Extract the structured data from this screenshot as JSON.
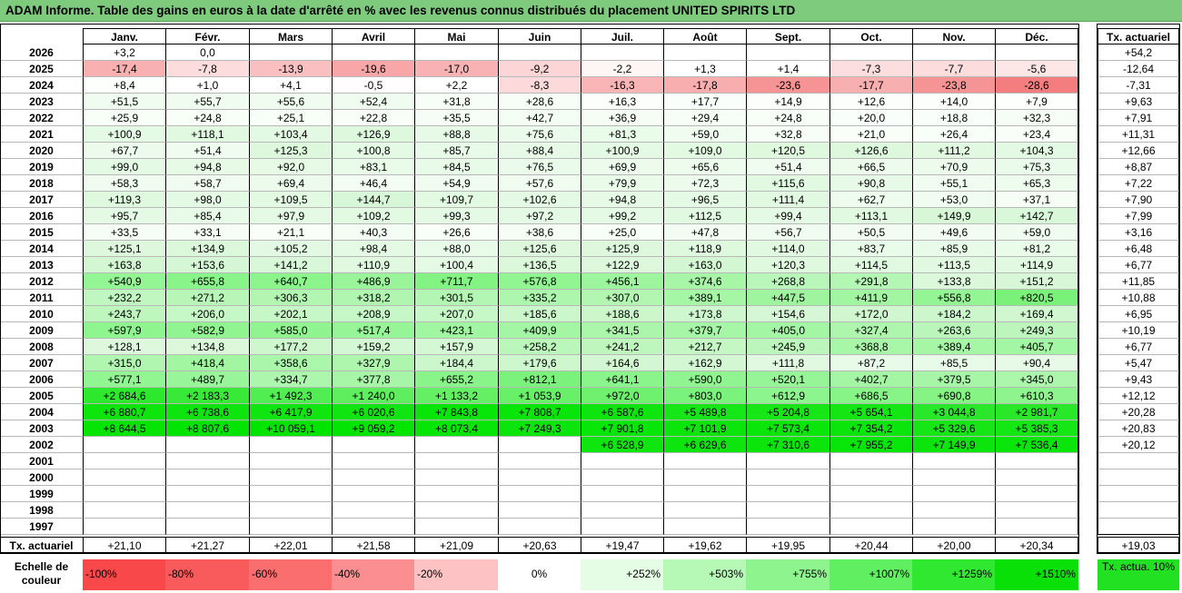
{
  "title": "ADAM Informe. Table des gains en euros à la date d'arrêté en % avec les revenus connus distribués du placement UNITED SPIRITS LTD",
  "columns": [
    "Janv.",
    "Févr.",
    "Mars",
    "Avril",
    "Mai",
    "Juin",
    "Juil.",
    "Août",
    "Sept.",
    "Oct.",
    "Nov.",
    "Déc."
  ],
  "tx_header": "Tx. actuariel",
  "rows": [
    {
      "year": "2026",
      "values": [
        "+3,2",
        "0,0",
        "",
        "",
        "",
        "",
        "",
        "",
        "",
        "",
        "",
        ""
      ],
      "tx": "+54,2"
    },
    {
      "year": "2025",
      "values": [
        "-17,4",
        "-7,8",
        "-13,9",
        "-19,6",
        "-17,0",
        "-9,2",
        "-2,2",
        "+1,3",
        "+1,4",
        "-7,3",
        "-7,7",
        "-5,6"
      ],
      "tx": "-12,64"
    },
    {
      "year": "2024",
      "values": [
        "+8,4",
        "+1,0",
        "+4,1",
        "-0,5",
        "+2,2",
        "-8,3",
        "-16,3",
        "-17,8",
        "-23,6",
        "-17,7",
        "-23,8",
        "-28,6"
      ],
      "tx": "-7,31"
    },
    {
      "year": "2023",
      "values": [
        "+51,5",
        "+55,7",
        "+55,6",
        "+52,4",
        "+31,8",
        "+28,6",
        "+16,3",
        "+17,7",
        "+14,9",
        "+12,6",
        "+14,0",
        "+7,9"
      ],
      "tx": "+9,63"
    },
    {
      "year": "2022",
      "values": [
        "+25,9",
        "+24,8",
        "+25,1",
        "+22,8",
        "+35,5",
        "+42,7",
        "+36,9",
        "+29,4",
        "+24,8",
        "+20,0",
        "+18,8",
        "+32,3"
      ],
      "tx": "+7,91"
    },
    {
      "year": "2021",
      "values": [
        "+100,9",
        "+118,1",
        "+103,4",
        "+126,9",
        "+88,8",
        "+75,6",
        "+81,3",
        "+59,0",
        "+32,8",
        "+21,0",
        "+26,4",
        "+23,4"
      ],
      "tx": "+11,31"
    },
    {
      "year": "2020",
      "values": [
        "+67,7",
        "+51,4",
        "+125,3",
        "+100,8",
        "+85,7",
        "+88,4",
        "+100,9",
        "+109,0",
        "+120,5",
        "+126,6",
        "+111,2",
        "+104,3"
      ],
      "tx": "+12,66"
    },
    {
      "year": "2019",
      "values": [
        "+99,0",
        "+94,8",
        "+92,0",
        "+83,1",
        "+84,5",
        "+76,5",
        "+69,9",
        "+65,6",
        "+51,4",
        "+66,5",
        "+70,9",
        "+75,3"
      ],
      "tx": "+8,87"
    },
    {
      "year": "2018",
      "values": [
        "+58,3",
        "+58,7",
        "+69,4",
        "+46,4",
        "+54,9",
        "+57,6",
        "+79,9",
        "+72,3",
        "+115,6",
        "+90,8",
        "+55,1",
        "+65,3"
      ],
      "tx": "+7,22"
    },
    {
      "year": "2017",
      "values": [
        "+119,3",
        "+98,0",
        "+109,5",
        "+144,7",
        "+109,7",
        "+102,6",
        "+94,8",
        "+96,5",
        "+111,4",
        "+62,7",
        "+53,0",
        "+37,1"
      ],
      "tx": "+7,90"
    },
    {
      "year": "2016",
      "values": [
        "+95,7",
        "+85,4",
        "+97,9",
        "+109,2",
        "+99,3",
        "+97,2",
        "+99,2",
        "+112,5",
        "+99,4",
        "+113,1",
        "+149,9",
        "+142,7"
      ],
      "tx": "+7,99"
    },
    {
      "year": "2015",
      "values": [
        "+33,5",
        "+33,1",
        "+21,1",
        "+40,3",
        "+26,6",
        "+38,6",
        "+25,0",
        "+47,8",
        "+56,7",
        "+50,5",
        "+49,6",
        "+59,0"
      ],
      "tx": "+3,16"
    },
    {
      "year": "2014",
      "values": [
        "+125,1",
        "+134,9",
        "+105,2",
        "+98,4",
        "+88,0",
        "+125,6",
        "+125,9",
        "+118,9",
        "+114,0",
        "+83,7",
        "+85,9",
        "+81,2"
      ],
      "tx": "+6,48"
    },
    {
      "year": "2013",
      "values": [
        "+163,8",
        "+153,6",
        "+141,2",
        "+110,9",
        "+100,4",
        "+136,5",
        "+122,9",
        "+163,0",
        "+120,3",
        "+114,5",
        "+113,5",
        "+114,9"
      ],
      "tx": "+6,77"
    },
    {
      "year": "2012",
      "values": [
        "+540,9",
        "+655,8",
        "+640,7",
        "+486,9",
        "+711,7",
        "+576,8",
        "+456,1",
        "+374,6",
        "+268,8",
        "+291,8",
        "+133,8",
        "+151,2"
      ],
      "tx": "+11,85"
    },
    {
      "year": "2011",
      "values": [
        "+232,2",
        "+271,2",
        "+306,3",
        "+318,2",
        "+301,5",
        "+335,2",
        "+307,0",
        "+389,1",
        "+447,5",
        "+411,9",
        "+556,8",
        "+820,5"
      ],
      "tx": "+10,88"
    },
    {
      "year": "2010",
      "values": [
        "+243,7",
        "+206,0",
        "+202,1",
        "+208,9",
        "+207,0",
        "+185,6",
        "+188,6",
        "+173,8",
        "+154,6",
        "+172,0",
        "+184,2",
        "+169,4"
      ],
      "tx": "+6,95"
    },
    {
      "year": "2009",
      "values": [
        "+597,9",
        "+582,9",
        "+585,0",
        "+517,4",
        "+423,1",
        "+409,9",
        "+341,5",
        "+379,7",
        "+405,0",
        "+327,4",
        "+263,6",
        "+249,3"
      ],
      "tx": "+10,19"
    },
    {
      "year": "2008",
      "values": [
        "+128,1",
        "+134,8",
        "+177,2",
        "+159,2",
        "+157,9",
        "+258,2",
        "+241,2",
        "+212,7",
        "+245,9",
        "+368,8",
        "+389,4",
        "+405,7"
      ],
      "tx": "+6,77"
    },
    {
      "year": "2007",
      "values": [
        "+315,0",
        "+418,4",
        "+358,6",
        "+327,9",
        "+184,4",
        "+179,6",
        "+164,6",
        "+162,9",
        "+111,8",
        "+87,2",
        "+85,5",
        "+90,4"
      ],
      "tx": "+5,47"
    },
    {
      "year": "2006",
      "values": [
        "+577,1",
        "+489,7",
        "+334,7",
        "+377,8",
        "+655,2",
        "+812,1",
        "+641,1",
        "+590,0",
        "+520,1",
        "+402,7",
        "+379,5",
        "+345,0"
      ],
      "tx": "+9,43"
    },
    {
      "year": "2005",
      "values": [
        "+2 684,6",
        "+2 183,3",
        "+1 492,3",
        "+1 240,0",
        "+1 133,2",
        "+1 053,9",
        "+972,0",
        "+803,0",
        "+612,9",
        "+686,5",
        "+690,8",
        "+610,3"
      ],
      "tx": "+12,12"
    },
    {
      "year": "2004",
      "values": [
        "+6 880,7",
        "+6 738,6",
        "+6 417,9",
        "+6 020,6",
        "+7 843,8",
        "+7 808,7",
        "+6 587,6",
        "+5 489,8",
        "+5 204,8",
        "+5 654,1",
        "+3 044,8",
        "+2 981,7"
      ],
      "tx": "+20,28"
    },
    {
      "year": "2003",
      "values": [
        "+8 644,5",
        "+8 807,6",
        "+10 059,1",
        "+9 059,2",
        "+8 073,4",
        "+7 249,3",
        "+7 901,8",
        "+7 101,9",
        "+7 573,4",
        "+7 354,2",
        "+5 329,6",
        "+5 385,3"
      ],
      "tx": "+20,83"
    },
    {
      "year": "2002",
      "values": [
        "",
        "",
        "",
        "",
        "",
        "",
        "+6 528,9",
        "+6 629,6",
        "+7 310,6",
        "+7 955,2",
        "+7 149,9",
        "+7 536,4"
      ],
      "tx": "+20,12"
    },
    {
      "year": "2001",
      "values": [
        "",
        "",
        "",
        "",
        "",
        "",
        "",
        "",
        "",
        "",
        "",
        ""
      ],
      "tx": ""
    },
    {
      "year": "2000",
      "values": [
        "",
        "",
        "",
        "",
        "",
        "",
        "",
        "",
        "",
        "",
        "",
        ""
      ],
      "tx": ""
    },
    {
      "year": "1999",
      "values": [
        "",
        "",
        "",
        "",
        "",
        "",
        "",
        "",
        "",
        "",
        "",
        ""
      ],
      "tx": ""
    },
    {
      "year": "1998",
      "values": [
        "",
        "",
        "",
        "",
        "",
        "",
        "",
        "",
        "",
        "",
        "",
        ""
      ],
      "tx": ""
    },
    {
      "year": "1997",
      "values": [
        "",
        "",
        "",
        "",
        "",
        "",
        "",
        "",
        "",
        "",
        "",
        ""
      ],
      "tx": ""
    }
  ],
  "footer": {
    "label": "Tx. actuariel",
    "values": [
      "+21,10",
      "+21,27",
      "+22,01",
      "+21,58",
      "+21,09",
      "+20,63",
      "+19,47",
      "+19,62",
      "+19,95",
      "+20,44",
      "+20,00",
      "+20,34"
    ],
    "tx": "+19,03"
  },
  "scale": {
    "label": "Echelle de couleur",
    "steps": [
      {
        "text": "-100%",
        "color": "#f8484a"
      },
      {
        "text": "-80%",
        "color": "#f95a5c"
      },
      {
        "text": "-60%",
        "color": "#fa6e70"
      },
      {
        "text": "-40%",
        "color": "#fb8e90"
      },
      {
        "text": "-20%",
        "color": "#fdc2c3"
      },
      {
        "text": "0%",
        "color": "#ffffff"
      },
      {
        "text": "+252%",
        "color": "#e4fde4"
      },
      {
        "text": "+503%",
        "color": "#b6f9b6"
      },
      {
        "text": "+755%",
        "color": "#8ef58e"
      },
      {
        "text": "+1007%",
        "color": "#60ef60"
      },
      {
        "text": "+1259%",
        "color": "#30e830"
      },
      {
        "text": "+1510%",
        "color": "#08e008"
      }
    ],
    "tx_label": "Tx. actua. 10%",
    "tx_color": "#22e022"
  },
  "colors": {
    "title_bg": "#7ecb7e",
    "neg_max": "#f25f61",
    "pos_max": "#00e400"
  }
}
